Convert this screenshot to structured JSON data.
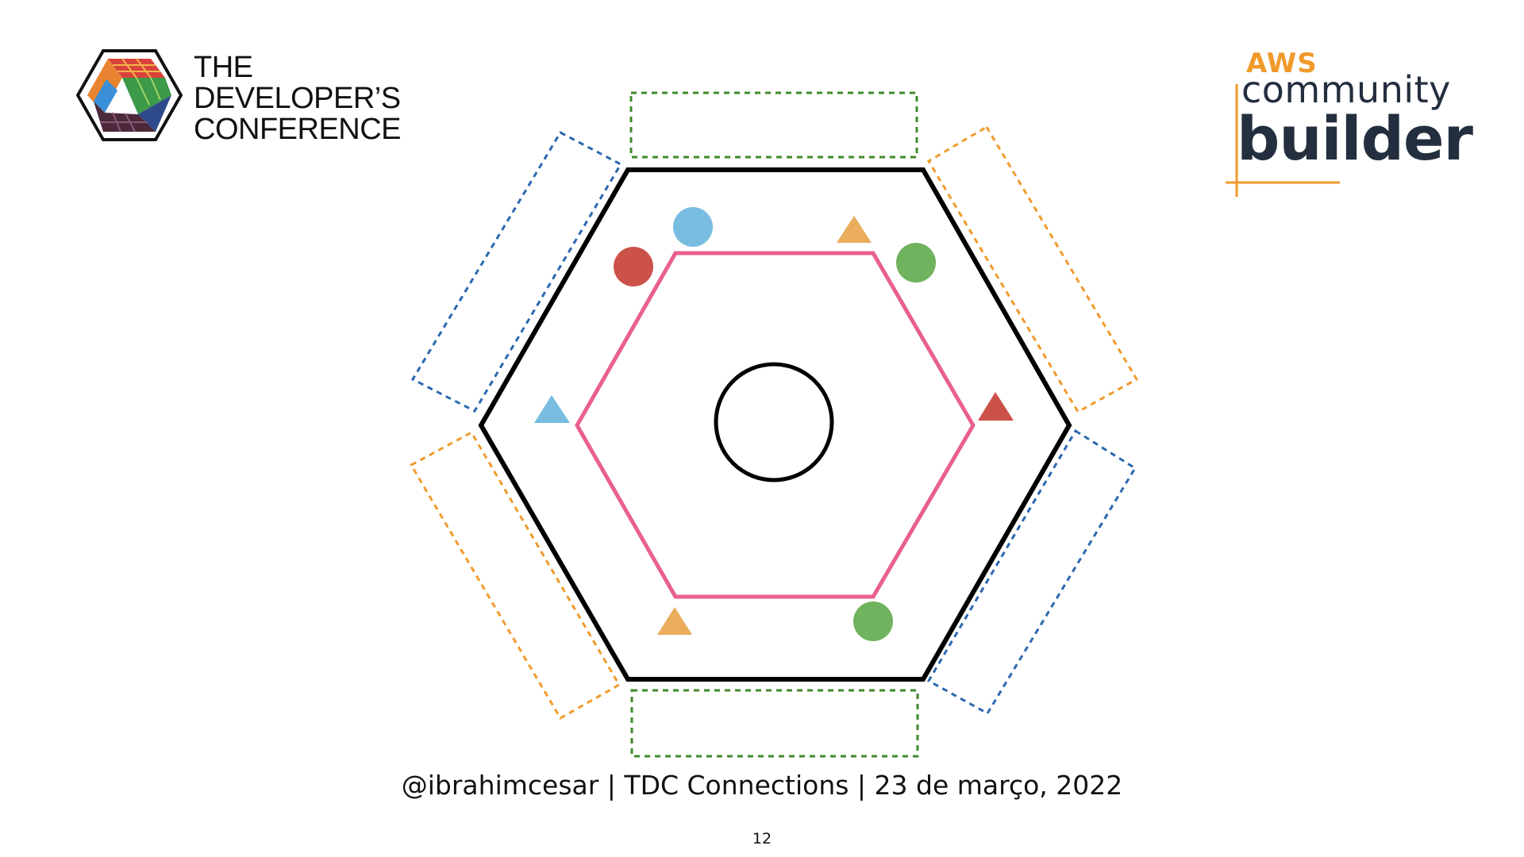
{
  "logos": {
    "tdc": {
      "icon": "tdc-cube-icon",
      "line1": "THE",
      "line2": "DEVELOPER’S",
      "line3": "CONFERENCE"
    },
    "aws": {
      "line1": "AWS",
      "line2": "community",
      "line3": "builder",
      "colors": {
        "orange": "#f19a2b",
        "navy": "#232f3e"
      }
    }
  },
  "diagram": {
    "outer_hexagon_color": "#000000",
    "inner_hexagon_color": "#e8608f",
    "center_circle_color": "#000000",
    "adapter_colors": {
      "top": "#3f8a2c",
      "bottom": "#3f8a2c",
      "upper_left": "#2a68b0",
      "lower_right": "#2a68b0",
      "upper_right": "#f19a2b",
      "lower_left": "#f19a2b"
    },
    "ports": [
      {
        "shape": "circle",
        "color": "#78bde0"
      },
      {
        "shape": "circle",
        "color": "#cc5149"
      },
      {
        "shape": "triangle",
        "color": "#e9ad5c"
      },
      {
        "shape": "circle",
        "color": "#6fb35e"
      },
      {
        "shape": "triangle",
        "color": "#78bde0"
      },
      {
        "shape": "triangle",
        "color": "#cc5149"
      },
      {
        "shape": "triangle",
        "color": "#e9ad5c"
      },
      {
        "shape": "circle",
        "color": "#6fb35e"
      }
    ]
  },
  "footer": {
    "text": "@ibrahimcesar | TDC Connections | 23 de março, 2022",
    "page_number": "12"
  }
}
